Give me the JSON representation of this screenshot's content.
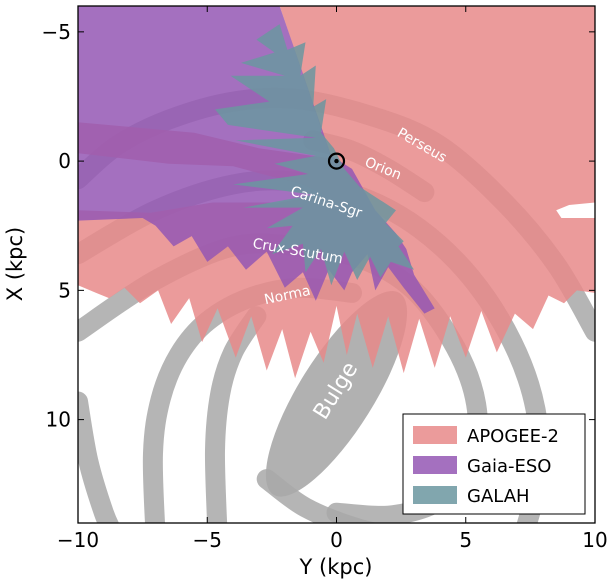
{
  "chart_data": {
    "type": "area",
    "title": "",
    "xlabel": "Y (kpc)",
    "ylabel": "X (kpc)",
    "xlim": [
      -10,
      10
    ],
    "ylim": [
      14,
      -6
    ],
    "y_axis_inverted": true,
    "xticks": [
      -10,
      -5,
      0,
      5,
      10
    ],
    "xtick_labels": [
      "−10",
      "−5",
      "0",
      "5",
      "10"
    ],
    "yticks": [
      -5,
      0,
      5,
      10
    ],
    "ytick_labels": [
      "−5",
      "0",
      "5",
      "10"
    ],
    "grid": false,
    "legend_position": "bottom-right",
    "sun_position": [
      0,
      0
    ],
    "series": [
      {
        "name": "APOGEE-2",
        "color": "#e88a8a",
        "opacity": 0.85,
        "outline": [
          [
            -10,
            1.9
          ],
          [
            -10,
            4.8
          ],
          [
            -9.3,
            5.1
          ],
          [
            -8.8,
            5.3
          ],
          [
            -8.2,
            4.9
          ],
          [
            -7.6,
            5.5
          ],
          [
            -6.9,
            5.0
          ],
          [
            -6.4,
            6.3
          ],
          [
            -5.7,
            5.3
          ],
          [
            -5.2,
            7.0
          ],
          [
            -4.6,
            5.7
          ],
          [
            -3.9,
            7.6
          ],
          [
            -3.3,
            6.0
          ],
          [
            -2.7,
            8.1
          ],
          [
            -2.1,
            6.5
          ],
          [
            -1.6,
            8.4
          ],
          [
            -1.0,
            6.6
          ],
          [
            -0.5,
            7.8
          ],
          [
            0.0,
            5.6
          ],
          [
            0.4,
            7.5
          ],
          [
            0.8,
            5.9
          ],
          [
            1.4,
            8.0
          ],
          [
            2.0,
            6.0
          ],
          [
            2.6,
            8.2
          ],
          [
            3.2,
            6.1
          ],
          [
            3.8,
            8.0
          ],
          [
            4.4,
            6.0
          ],
          [
            5.0,
            7.6
          ],
          [
            5.6,
            5.8
          ],
          [
            6.2,
            7.4
          ],
          [
            6.9,
            5.9
          ],
          [
            7.6,
            6.5
          ],
          [
            8.2,
            5.2
          ],
          [
            8.8,
            5.5
          ],
          [
            9.3,
            5.0
          ],
          [
            10,
            5.1
          ],
          [
            10,
            2.2
          ],
          [
            8.7,
            2.2
          ],
          [
            8.5,
            1.9
          ],
          [
            9.0,
            1.7
          ],
          [
            10,
            1.6
          ],
          [
            10,
            -6
          ],
          [
            -2.2,
            -6
          ],
          [
            -0.2,
            -0.1
          ],
          [
            -3.0,
            -0.5
          ],
          [
            -5.5,
            -1.1
          ],
          [
            -10,
            -1.5
          ],
          [
            -10,
            -0.3
          ],
          [
            -6.5,
            0.1
          ],
          [
            -4.0,
            0.2
          ],
          [
            -2.5,
            0.6
          ],
          [
            -1.3,
            0.9
          ],
          [
            -0.5,
            1.3
          ],
          [
            -2.2,
            1.6
          ],
          [
            -4.8,
            1.6
          ],
          [
            -7.2,
            2.0
          ]
        ]
      },
      {
        "name": "Gaia-ESO",
        "color": "#9457b4",
        "opacity": 0.85,
        "outline": [
          [
            -10,
            -6
          ],
          [
            -2.2,
            -6
          ],
          [
            -0.2,
            -0.2
          ],
          [
            0.6,
            0.3
          ],
          [
            1.5,
            1.9
          ],
          [
            2.3,
            2.8
          ],
          [
            2.7,
            3.4
          ],
          [
            3.0,
            4.4
          ],
          [
            3.8,
            5.7
          ],
          [
            3.4,
            5.9
          ],
          [
            2.6,
            4.9
          ],
          [
            2.0,
            4.1
          ],
          [
            1.5,
            5.0
          ],
          [
            1.2,
            3.6
          ],
          [
            0.6,
            4.3
          ],
          [
            0.3,
            5.0
          ],
          [
            -0.3,
            4.2
          ],
          [
            -0.8,
            5.4
          ],
          [
            -1.3,
            4.3
          ],
          [
            -2.0,
            4.9
          ],
          [
            -2.7,
            3.5
          ],
          [
            -3.5,
            4.2
          ],
          [
            -4.2,
            3.3
          ],
          [
            -5.0,
            3.9
          ],
          [
            -5.6,
            2.9
          ],
          [
            -6.3,
            3.3
          ],
          [
            -7.0,
            2.5
          ],
          [
            -7.5,
            2.2
          ],
          [
            -10,
            2.3
          ]
        ]
      },
      {
        "name": "GALAH",
        "color": "#6b96a0",
        "opacity": 0.85,
        "outline": [
          [
            -3.1,
            -4.7
          ],
          [
            -2.2,
            -5.3
          ],
          [
            -1.9,
            -4.3
          ],
          [
            -1.2,
            -4.6
          ],
          [
            -1.4,
            -3.3
          ],
          [
            -0.8,
            -3.7
          ],
          [
            -0.9,
            -2.1
          ],
          [
            -0.4,
            -2.4
          ],
          [
            -0.6,
            -1.1
          ],
          [
            -0.1,
            -0.5
          ],
          [
            0.3,
            0.3
          ],
          [
            0.9,
            1.0
          ],
          [
            2.3,
            1.9
          ],
          [
            1.9,
            2.4
          ],
          [
            2.6,
            3.1
          ],
          [
            2.4,
            3.3
          ],
          [
            3.0,
            4.2
          ],
          [
            2.1,
            3.9
          ],
          [
            1.7,
            4.5
          ],
          [
            1.3,
            3.7
          ],
          [
            0.8,
            4.6
          ],
          [
            0.3,
            3.5
          ],
          [
            -0.2,
            4.8
          ],
          [
            -0.6,
            3.4
          ],
          [
            -1.2,
            4.3
          ],
          [
            -1.3,
            3.2
          ],
          [
            -2.5,
            3.6
          ],
          [
            -1.7,
            2.5
          ],
          [
            -2.7,
            2.6
          ],
          [
            -1.3,
            1.8
          ],
          [
            -3.6,
            1.8
          ],
          [
            -0.9,
            1.3
          ],
          [
            -2.4,
            1.1
          ],
          [
            -4.0,
            0.9
          ],
          [
            -1.1,
            0.5
          ],
          [
            -2.4,
            0.1
          ],
          [
            -0.8,
            -0.2
          ],
          [
            -3.9,
            -0.8
          ],
          [
            -0.8,
            -0.9
          ],
          [
            -4.2,
            -1.4
          ],
          [
            -4.7,
            -2.0
          ],
          [
            -2.6,
            -2.3
          ],
          [
            -4.1,
            -3.3
          ],
          [
            -2.0,
            -3.3
          ],
          [
            -3.7,
            -3.8
          ],
          [
            -2.4,
            -4.2
          ]
        ]
      }
    ],
    "arms": {
      "Perseus": [
        [
          -10,
          0.7
        ],
        [
          -8.5,
          -0.6
        ],
        [
          -6.5,
          -1.6
        ],
        [
          -4.0,
          -2.3
        ],
        [
          -1.5,
          -2.4
        ],
        [
          1.5,
          -1.7
        ],
        [
          4.0,
          -0.6
        ],
        [
          6.5,
          1.6
        ],
        [
          8.5,
          4.0
        ],
        [
          10.0,
          6.6
        ]
      ],
      "Orion": [
        [
          -0.9,
          -0.8
        ],
        [
          0.6,
          -0.4
        ],
        [
          2.0,
          0.3
        ],
        [
          3.4,
          1.2
        ]
      ],
      "Carina-Sgr": [
        [
          -10,
          3.6
        ],
        [
          -7.0,
          1.9
        ],
        [
          -4.0,
          0.9
        ],
        [
          -1.5,
          0.8
        ],
        [
          1.0,
          1.4
        ],
        [
          3.2,
          2.6
        ],
        [
          5.2,
          4.5
        ],
        [
          6.8,
          7.0
        ],
        [
          7.7,
          9.6
        ],
        [
          7.8,
          12.2
        ],
        [
          7.2,
          14.6
        ]
      ],
      "Crux-Scutum": [
        [
          -10,
          6.6
        ],
        [
          -7.0,
          4.6
        ],
        [
          -4.0,
          3.3
        ],
        [
          -1.5,
          3.3
        ],
        [
          1.0,
          3.8
        ],
        [
          3.0,
          5.0
        ],
        [
          4.6,
          7.2
        ],
        [
          5.4,
          9.4
        ],
        [
          5.3,
          11.4
        ],
        [
          4.2,
          13.0
        ],
        [
          2.2,
          13.7
        ],
        [
          0,
          13.6
        ]
      ],
      "Norma": [
        [
          0.6,
          5.1
        ],
        [
          -1.5,
          4.9
        ],
        [
          -3.4,
          5.3
        ],
        [
          -5.0,
          6.2
        ],
        [
          -6.1,
          7.5
        ],
        [
          -6.8,
          9.2
        ],
        [
          -7.1,
          11.3
        ],
        [
          -7.0,
          14.5
        ]
      ],
      "Inner-1": [
        [
          -3.1,
          6.0
        ],
        [
          -4.0,
          7.4
        ],
        [
          -4.5,
          9.0
        ],
        [
          -4.7,
          11.2
        ],
        [
          -4.6,
          14.5
        ]
      ],
      "Inner-2": [
        [
          -10,
          9.3
        ],
        [
          -9.6,
          11.6
        ],
        [
          -9.0,
          13.6
        ],
        [
          -8.6,
          14.5
        ]
      ],
      "Inner-3": [
        [
          -2.7,
          12.3
        ],
        [
          -1.2,
          13.4
        ],
        [
          0.8,
          14.2
        ],
        [
          3.0,
          14.7
        ]
      ]
    },
    "bulge": {
      "center": [
        0,
        9
      ],
      "semi_major": 4.6,
      "semi_minor": 1.45,
      "angle_deg": 58
    },
    "arm_labels": [
      {
        "text": "Perseus",
        "x": 3.3,
        "y": -0.6,
        "rotation": 30
      },
      {
        "text": "Orion",
        "x": 1.8,
        "y": 0.3,
        "rotation": 22
      },
      {
        "text": "Carina-Sgr",
        "x": -0.4,
        "y": 1.6,
        "rotation": 18
      },
      {
        "text": "Crux-Scutum",
        "x": -1.5,
        "y": 3.5,
        "rotation": 10
      },
      {
        "text": "Norma",
        "x": -1.9,
        "y": 5.2,
        "rotation": -12
      },
      {
        "text": "Bulge",
        "x": 0,
        "y": 8.9,
        "rotation": -58
      }
    ]
  }
}
